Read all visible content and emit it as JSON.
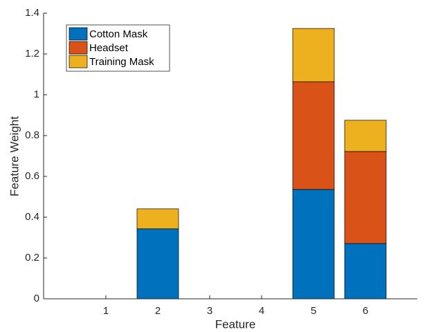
{
  "chart_data": {
    "type": "stacked_bar",
    "xlabel": "Feature",
    "ylabel": "Feature Weight",
    "categories": [
      "1",
      "2",
      "3",
      "4",
      "5",
      "6"
    ],
    "series": [
      {
        "name": "Cotton Mask",
        "color": "#0072BD",
        "values": [
          0,
          0.343,
          0,
          0,
          0.536,
          0.271
        ]
      },
      {
        "name": "Headset",
        "color": "#D95319",
        "values": [
          0,
          0,
          0,
          0,
          0.528,
          0.451
        ]
      },
      {
        "name": "Training Mask",
        "color": "#EDB120",
        "values": [
          0,
          0.098,
          0,
          0,
          0.261,
          0.153
        ]
      }
    ],
    "ylim": [
      0,
      1.4
    ],
    "yticks": [
      0,
      0.2,
      0.4,
      0.6,
      0.8,
      1,
      1.2,
      1.4
    ],
    "legend": "northwest"
  }
}
